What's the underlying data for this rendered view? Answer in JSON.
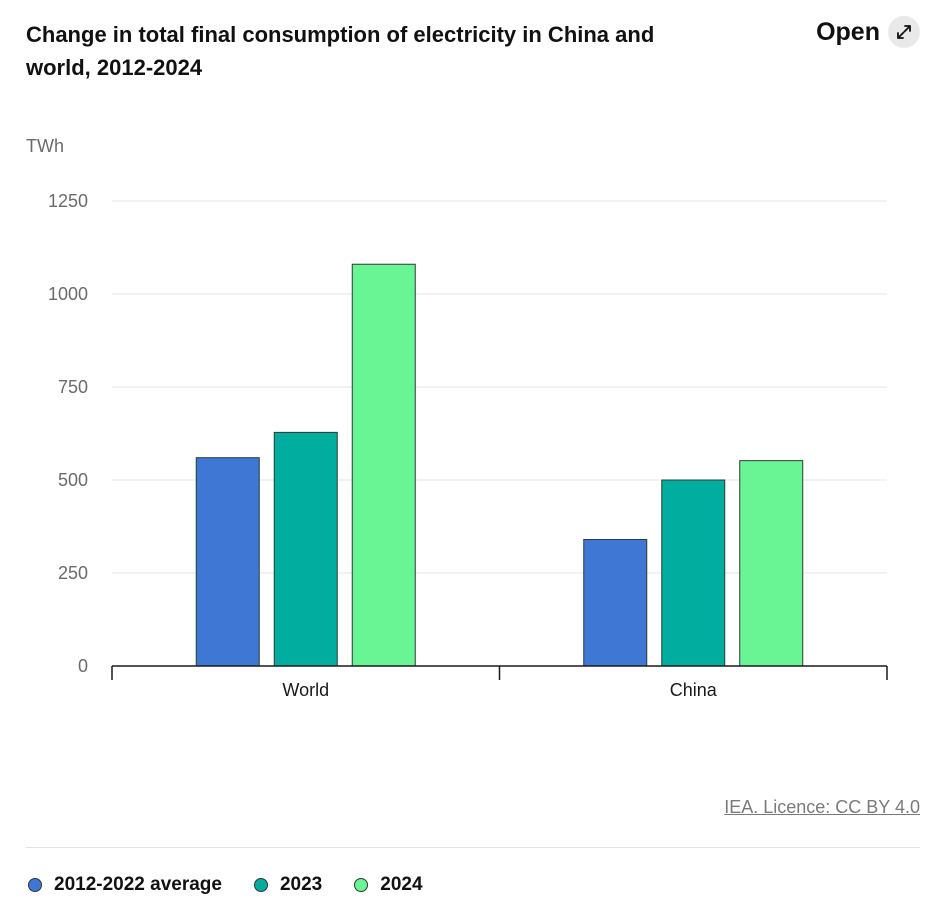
{
  "header": {
    "title": "Change in total final consumption of electricity in China and world, 2012-2024",
    "open_label": "Open"
  },
  "source": "IEA. Licence: CC BY 4.0",
  "chart_data": {
    "type": "bar",
    "title": "Change in total final consumption of electricity in China and world, 2012-2024",
    "ylabel": "TWh",
    "xlabel": "",
    "ylim": [
      0,
      1250
    ],
    "yticks": [
      0,
      250,
      500,
      750,
      1000,
      1250
    ],
    "categories": [
      "World",
      "China"
    ],
    "series": [
      {
        "name": "2012-2022 average",
        "color": "#3f78d4",
        "values": [
          560,
          340
        ]
      },
      {
        "name": "2023",
        "color": "#00ad9f",
        "values": [
          628,
          500
        ]
      },
      {
        "name": "2024",
        "color": "#6af594",
        "values": [
          1080,
          552
        ]
      }
    ],
    "grid": true,
    "legend": "bottom-left"
  }
}
